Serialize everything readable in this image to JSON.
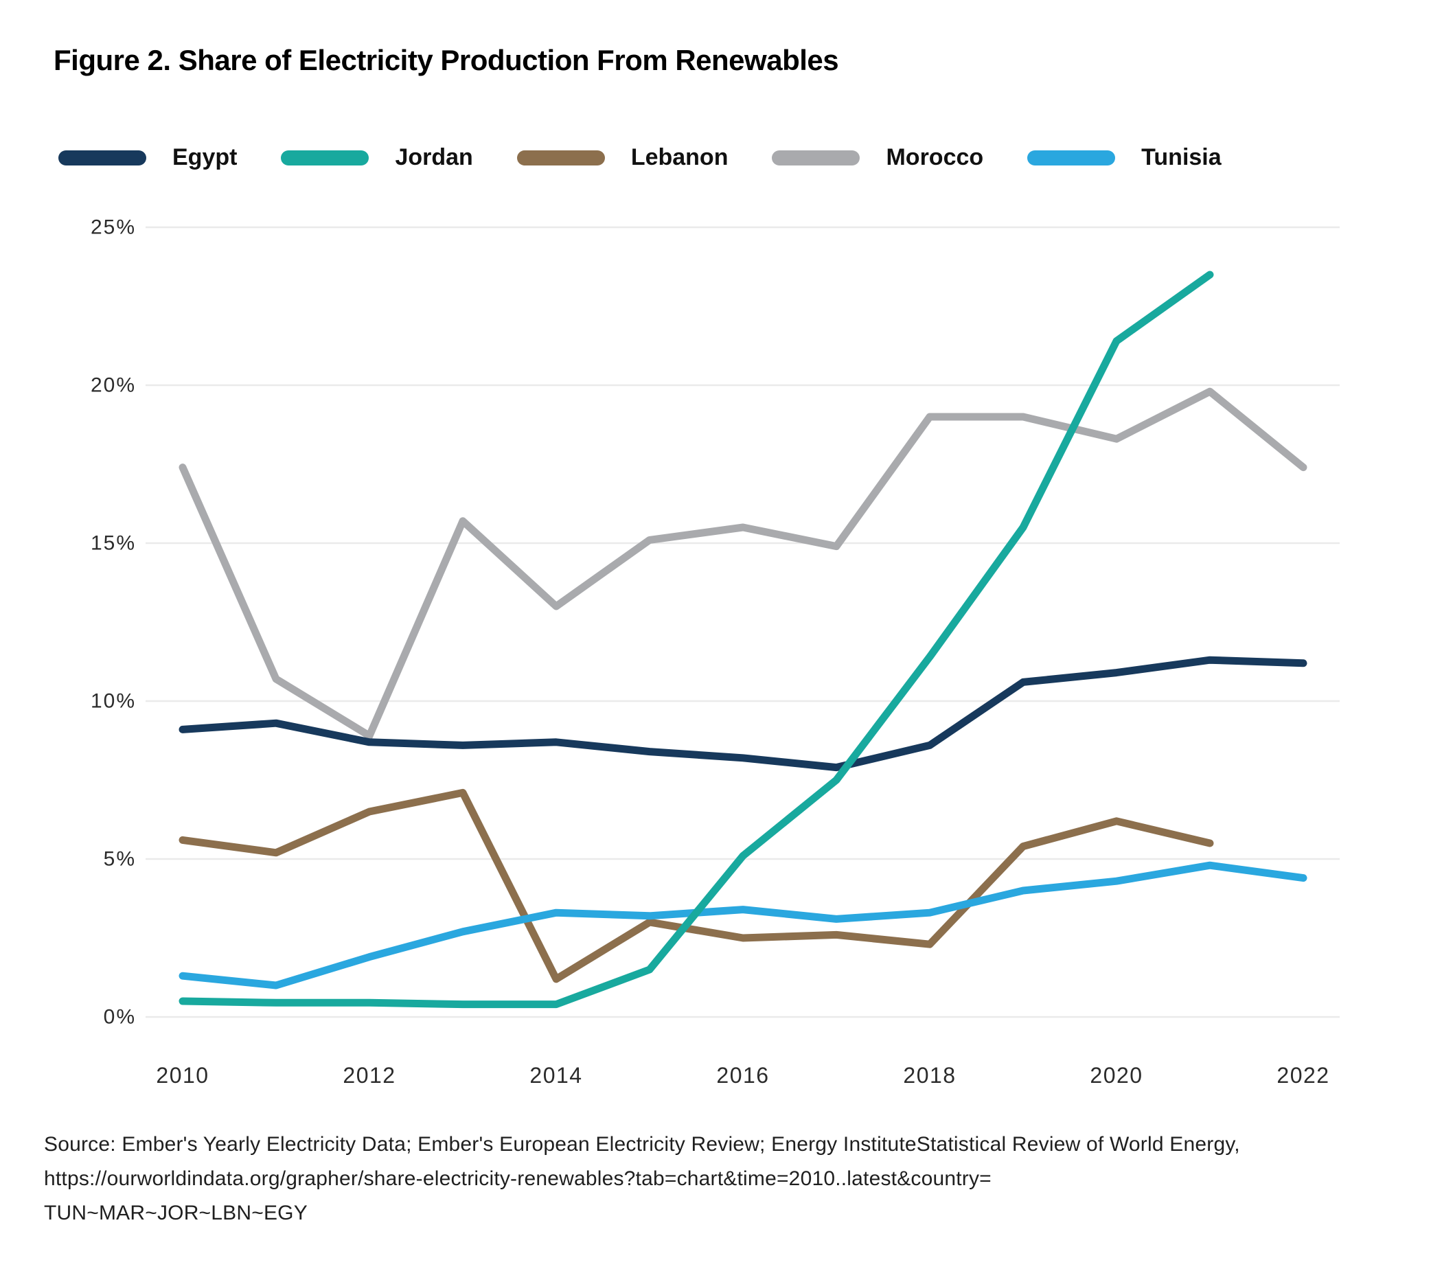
{
  "title": "Figure 2. Share of Electricity Production From Renewables",
  "chart_data": {
    "type": "line",
    "title": "Figure 2. Share of Electricity Production From Renewables",
    "xlabel": "",
    "ylabel": "",
    "xlim": [
      2010,
      2022
    ],
    "ylim": [
      0,
      25
    ],
    "grid": "horizontal",
    "legend_position": "top",
    "x_tick_values": [
      2010,
      2012,
      2014,
      2016,
      2018,
      2020,
      2022
    ],
    "x_tick_labels": [
      "2010",
      "2012",
      "2014",
      "2016",
      "2018",
      "2020",
      "2022"
    ],
    "y_tick_values": [
      0,
      5,
      10,
      15,
      20,
      25
    ],
    "y_tick_labels": [
      "0%",
      "5%",
      "10%",
      "15%",
      "20%",
      "25%"
    ],
    "series": [
      {
        "name": "Egypt",
        "color": "#17395C",
        "x": [
          2010,
          2011,
          2012,
          2013,
          2014,
          2015,
          2016,
          2017,
          2018,
          2019,
          2020,
          2021,
          2022
        ],
        "values": [
          9.1,
          9.3,
          8.7,
          8.6,
          8.7,
          8.4,
          8.2,
          7.9,
          8.6,
          10.6,
          10.9,
          11.3,
          11.2
        ]
      },
      {
        "name": "Jordan",
        "color": "#18A99E",
        "x": [
          2010,
          2011,
          2012,
          2013,
          2014,
          2015,
          2016,
          2017,
          2018,
          2019,
          2020,
          2021
        ],
        "values": [
          0.5,
          0.45,
          0.45,
          0.4,
          0.4,
          1.5,
          5.1,
          7.5,
          11.4,
          15.5,
          21.4,
          23.5
        ]
      },
      {
        "name": "Lebanon",
        "color": "#8C6F4D",
        "x": [
          2010,
          2011,
          2012,
          2013,
          2014,
          2015,
          2016,
          2017,
          2018,
          2019,
          2020,
          2021
        ],
        "values": [
          5.6,
          5.2,
          6.5,
          7.1,
          1.2,
          3.0,
          2.5,
          2.6,
          2.3,
          5.4,
          6.2,
          5.5
        ]
      },
      {
        "name": "Morocco",
        "color": "#A9AAAD",
        "x": [
          2010,
          2011,
          2012,
          2013,
          2014,
          2015,
          2016,
          2017,
          2018,
          2019,
          2020,
          2021,
          2022
        ],
        "values": [
          17.4,
          10.7,
          8.9,
          15.7,
          13.0,
          15.1,
          15.5,
          14.9,
          19.0,
          19.0,
          18.3,
          19.8,
          17.4
        ]
      },
      {
        "name": "Tunisia",
        "color": "#2AA7DF",
        "x": [
          2010,
          2011,
          2012,
          2013,
          2014,
          2015,
          2016,
          2017,
          2018,
          2019,
          2020,
          2021,
          2022
        ],
        "values": [
          1.3,
          1.0,
          1.9,
          2.7,
          3.3,
          3.2,
          3.4,
          3.1,
          3.3,
          4.0,
          4.3,
          4.8,
          4.4
        ]
      }
    ]
  },
  "colors": {
    "gridline": "#EAEAEA",
    "tick_text": "#2B2B2B",
    "title_text": "#000000"
  },
  "source": {
    "line1": "Source: Ember's Yearly Electricity Data; Ember's European Electricity Review; Energy InstituteStatistical Review of World Energy,",
    "line2": "https://ourworldindata.org/grapher/share-electricity-renewables?tab=chart&time=2010..latest&country=",
    "line3": "TUN~MAR~JOR~LBN~EGY"
  }
}
